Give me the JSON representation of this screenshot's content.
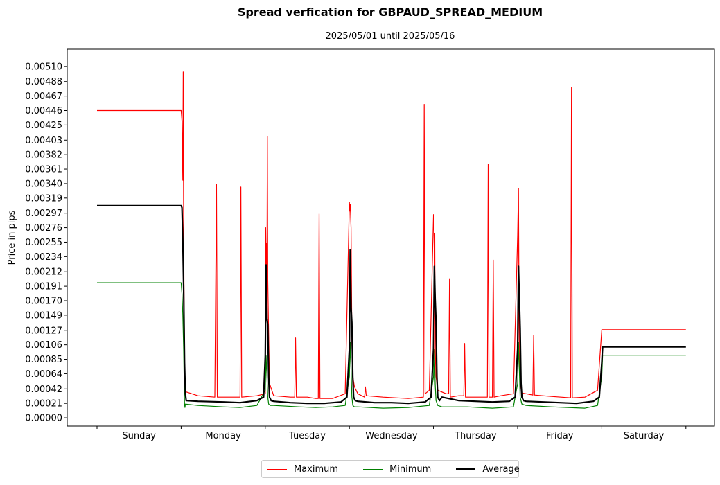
{
  "chart_data": {
    "type": "line",
    "title": "Spread verfication for GBPAUD_SPREAD_MEDIUM",
    "subtitle": "2025/05/01 until 2025/05/16",
    "ylabel": "Price in pips",
    "xlabel": "",
    "categories": [
      "Sunday",
      "Monday",
      "Tuesday",
      "Wednesday",
      "Thursday",
      "Friday",
      "Saturday"
    ],
    "xlim": [
      0,
      7.33
    ],
    "ylim": [
      -0.00012,
      0.00535
    ],
    "yticks": [
      "0.00000",
      "0.00021",
      "0.00042",
      "0.00064",
      "0.00085",
      "0.00106",
      "0.00127",
      "0.00149",
      "0.00170",
      "0.00191",
      "0.00212",
      "0.00234",
      "0.00255",
      "0.00276",
      "0.00297",
      "0.00319",
      "0.00340",
      "0.00361",
      "0.00382",
      "0.00403",
      "0.00425",
      "0.00446",
      "0.00467",
      "0.00488",
      "0.00510"
    ],
    "grid": false,
    "legend_position": "bottom-center",
    "series": [
      {
        "name": "Maximum",
        "color": "#ff0000",
        "x": [
          0.0,
          1.0,
          1.01,
          1.02,
          1.025,
          1.03,
          1.035,
          1.04,
          1.045,
          1.05,
          1.2,
          1.4,
          1.42,
          1.43,
          1.6,
          1.7,
          1.71,
          1.72,
          1.9,
          2.0,
          2.005,
          2.01,
          2.015,
          2.02,
          2.025,
          2.03,
          2.04,
          2.05,
          2.1,
          2.3,
          2.35,
          2.36,
          2.37,
          2.5,
          2.6,
          2.63,
          2.64,
          2.65,
          2.8,
          2.95,
          3.0,
          3.005,
          3.01,
          3.02,
          3.025,
          3.03,
          3.04,
          3.06,
          3.1,
          3.18,
          3.19,
          3.2,
          3.4,
          3.7,
          3.88,
          3.89,
          3.9,
          3.95,
          4.0,
          4.005,
          4.01,
          4.015,
          4.02,
          4.03,
          4.05,
          4.15,
          4.18,
          4.19,
          4.2,
          4.3,
          4.36,
          4.37,
          4.38,
          4.5,
          4.64,
          4.65,
          4.66,
          4.7,
          4.71,
          4.72,
          4.8,
          4.95,
          5.0,
          5.005,
          5.01,
          5.015,
          5.02,
          5.03,
          5.05,
          5.1,
          5.18,
          5.19,
          5.2,
          5.4,
          5.63,
          5.64,
          5.65,
          5.8,
          5.95,
          6.0,
          6.01,
          6.2,
          7.0
        ],
        "y": [
          0.00446,
          0.00446,
          0.00431,
          0.00345,
          0.00502,
          0.00284,
          0.0018,
          0.0008,
          0.0004,
          0.00038,
          0.00032,
          0.0003,
          0.00339,
          0.0003,
          0.0003,
          0.0003,
          0.00335,
          0.0003,
          0.00032,
          0.00035,
          0.00276,
          0.0021,
          0.00253,
          0.00211,
          0.00408,
          0.002,
          0.0012,
          0.0005,
          0.00032,
          0.0003,
          0.0003,
          0.00116,
          0.0003,
          0.0003,
          0.00028,
          0.00028,
          0.00296,
          0.00028,
          0.00028,
          0.00035,
          0.00313,
          0.003,
          0.0031,
          0.00276,
          0.002,
          0.0011,
          0.0006,
          0.00045,
          0.00035,
          0.0003,
          0.00045,
          0.00032,
          0.0003,
          0.00028,
          0.0003,
          0.00455,
          0.00035,
          0.0004,
          0.00295,
          0.00278,
          0.0024,
          0.00268,
          0.001,
          0.0006,
          0.0004,
          0.00035,
          0.00035,
          0.00202,
          0.0003,
          0.00032,
          0.00032,
          0.00108,
          0.0003,
          0.0003,
          0.0003,
          0.00368,
          0.0003,
          0.0003,
          0.00229,
          0.0003,
          0.00032,
          0.00035,
          0.00265,
          0.003,
          0.00333,
          0.002,
          0.0009,
          0.0005,
          0.00036,
          0.00035,
          0.00033,
          0.0012,
          0.00033,
          0.00031,
          0.00029,
          0.0048,
          0.00029,
          0.0003,
          0.0004,
          0.00128,
          0.00128,
          0.00128,
          0.00128
        ]
      },
      {
        "name": "Minimum",
        "color": "#008000",
        "x": [
          0.0,
          1.0,
          1.01,
          1.02,
          1.03,
          1.04,
          1.045,
          1.05,
          1.2,
          1.5,
          1.7,
          1.9,
          2.0,
          2.01,
          2.02,
          2.03,
          2.04,
          2.06,
          2.1,
          2.4,
          2.6,
          2.8,
          2.95,
          3.0,
          3.01,
          3.02,
          3.03,
          3.04,
          3.06,
          3.1,
          3.4,
          3.7,
          3.95,
          4.0,
          4.01,
          4.02,
          4.03,
          4.05,
          4.1,
          4.4,
          4.7,
          4.95,
          5.0,
          5.01,
          5.02,
          5.03,
          5.05,
          5.1,
          5.4,
          5.8,
          5.95,
          6.0,
          6.01,
          7.0
        ],
        "y": [
          0.00196,
          0.00196,
          0.0018,
          0.0015,
          0.001,
          0.0002,
          0.00015,
          0.0002,
          0.00018,
          0.00016,
          0.00015,
          0.00018,
          0.0004,
          0.0009,
          0.0006,
          0.0003,
          0.0002,
          0.00018,
          0.00018,
          0.00016,
          0.00015,
          0.00016,
          0.00018,
          0.0006,
          0.0011,
          0.0007,
          0.0003,
          0.00018,
          0.00016,
          0.00016,
          0.00014,
          0.00015,
          0.00018,
          0.0006,
          0.001,
          0.0005,
          0.00025,
          0.00018,
          0.00016,
          0.00016,
          0.00014,
          0.00016,
          0.0005,
          0.0011,
          0.0007,
          0.0003,
          0.0002,
          0.00018,
          0.00016,
          0.00014,
          0.00018,
          0.0006,
          0.00091,
          0.00091
        ]
      },
      {
        "name": "Average",
        "color": "#000000",
        "x": [
          0.0,
          1.0,
          1.01,
          1.02,
          1.03,
          1.04,
          1.05,
          1.06,
          1.2,
          1.5,
          1.7,
          1.9,
          1.98,
          2.0,
          2.01,
          2.02,
          2.03,
          2.04,
          2.05,
          2.07,
          2.1,
          2.3,
          2.5,
          2.7,
          2.9,
          2.97,
          3.0,
          3.01,
          3.02,
          3.03,
          3.04,
          3.05,
          3.07,
          3.1,
          3.3,
          3.5,
          3.7,
          3.9,
          3.97,
          4.0,
          4.01,
          4.02,
          4.03,
          4.04,
          4.05,
          4.07,
          4.1,
          4.3,
          4.5,
          4.7,
          4.9,
          4.97,
          5.0,
          5.01,
          5.02,
          5.03,
          5.04,
          5.05,
          5.07,
          5.1,
          5.3,
          5.5,
          5.7,
          5.9,
          5.97,
          6.0,
          6.01,
          7.0
        ],
        "y": [
          0.00308,
          0.00308,
          0.00305,
          0.00259,
          0.0019,
          0.0008,
          0.00035,
          0.00025,
          0.00024,
          0.00023,
          0.00022,
          0.00025,
          0.0003,
          0.0009,
          0.00222,
          0.00144,
          0.00135,
          0.0006,
          0.0003,
          0.00025,
          0.00024,
          0.00022,
          0.00021,
          0.00021,
          0.00023,
          0.0003,
          0.001,
          0.00244,
          0.0016,
          0.00138,
          0.0006,
          0.0003,
          0.00025,
          0.00024,
          0.00022,
          0.00022,
          0.00021,
          0.00023,
          0.0003,
          0.001,
          0.0022,
          0.00172,
          0.0014,
          0.0006,
          0.0003,
          0.00025,
          0.0003,
          0.00025,
          0.00024,
          0.00023,
          0.00024,
          0.0003,
          0.001,
          0.0022,
          0.00175,
          0.0013,
          0.0005,
          0.0003,
          0.00025,
          0.00024,
          0.00023,
          0.00022,
          0.00021,
          0.00024,
          0.0003,
          0.0008,
          0.00103,
          0.00103
        ]
      }
    ]
  }
}
